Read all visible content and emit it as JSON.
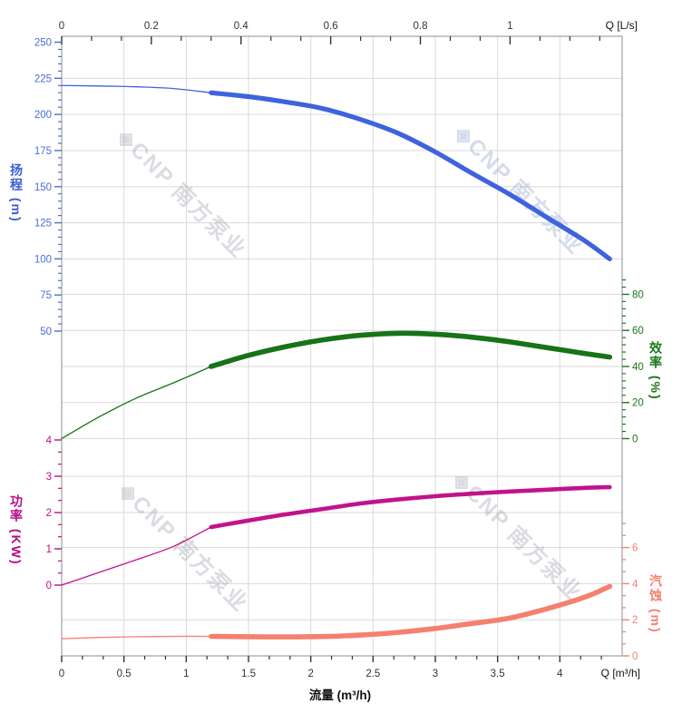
{
  "axes": {
    "head": {
      "title": "扬程 (m)"
    },
    "power": {
      "title": "功率 (KW)"
    },
    "eff": {
      "title": "效率 (%)"
    },
    "npsh": {
      "title": "汽蚀 (m)"
    },
    "bottom": {
      "title": "流量 (m³/h)",
      "unit": "Q [m³/h]"
    },
    "top": {
      "unit": "Q [L/s]"
    }
  },
  "watermark": {
    "text": "◈CNP 南方泵业"
  },
  "colors": {
    "head_curve": "#3e63dc",
    "head_labels": "#4a6fd8",
    "eff_curve": "#177317",
    "eff_labels": "#1a7a1a",
    "power_curve": "#c1138a",
    "power_labels": "#bf0d8c",
    "npsh_curve": "#f5806e",
    "npsh_labels": "#f5806e",
    "grid": "#dadada",
    "border": "#8c8c8c",
    "xtick_text": "#333333"
  },
  "chart_data": {
    "type": "line",
    "title": "",
    "x": {
      "name": "流量",
      "axis_label": "流量 (m³/h)",
      "unit_bottom": "Q [m³/h]",
      "unit_top": "Q [L/s]",
      "range_m3h": [
        0,
        4.5
      ],
      "major_ticks_m3h": [
        0,
        0.5,
        1,
        1.5,
        2,
        2.5,
        3,
        3.5,
        4
      ],
      "minor_step_m3h": 0.16667,
      "range_ls": [
        0,
        1.25
      ],
      "major_ticks_ls": [
        0,
        0.2,
        0.4,
        0.6,
        0.8,
        1
      ],
      "minor_step_ls": 0.06667
    },
    "thin_to_thick_q": 1.2,
    "curve_end_q": 4.4,
    "grid": true,
    "legend": "none",
    "series": [
      {
        "id": "head",
        "name": "扬程",
        "unit": "m",
        "axis_side": "left",
        "range": [
          50,
          250
        ],
        "major_ticks": [
          250,
          225,
          200,
          175,
          150,
          125,
          100,
          75,
          50
        ],
        "minor_step": 5,
        "minor_min": 50,
        "minor_max": 250,
        "points": [
          [
            0,
            220
          ],
          [
            0.3,
            219.7
          ],
          [
            0.6,
            219.1
          ],
          [
            0.9,
            217.9
          ],
          [
            1.2,
            215
          ],
          [
            1.5,
            212.3
          ],
          [
            1.8,
            208.6
          ],
          [
            2.1,
            204
          ],
          [
            2.4,
            196.5
          ],
          [
            2.7,
            187
          ],
          [
            3,
            174
          ],
          [
            3.3,
            159
          ],
          [
            3.6,
            144.5
          ],
          [
            3.9,
            128.5
          ],
          [
            4.2,
            112.5
          ],
          [
            4.4,
            100
          ]
        ]
      },
      {
        "id": "eff",
        "name": "效率",
        "unit": "%",
        "axis_side": "right",
        "range": [
          0,
          80
        ],
        "major_ticks": [
          80,
          60,
          40,
          20,
          0
        ],
        "minor_step": 4,
        "minor_min": 0,
        "minor_max": 88,
        "points": [
          [
            0,
            0
          ],
          [
            0.3,
            12
          ],
          [
            0.6,
            22.5
          ],
          [
            0.9,
            31
          ],
          [
            1.2,
            40
          ],
          [
            1.5,
            46.2
          ],
          [
            1.8,
            51
          ],
          [
            2.1,
            54.8
          ],
          [
            2.4,
            57.3
          ],
          [
            2.7,
            58.4
          ],
          [
            3,
            57.9
          ],
          [
            3.3,
            56.2
          ],
          [
            3.6,
            53.6
          ],
          [
            3.9,
            50.4
          ],
          [
            4.2,
            47.2
          ],
          [
            4.4,
            45.2
          ]
        ]
      },
      {
        "id": "power",
        "name": "功率",
        "unit": "KW",
        "axis_side": "left",
        "range": [
          0,
          4
        ],
        "major_ticks": [
          4,
          3,
          2,
          1,
          0
        ],
        "minor_step": 0.33333,
        "minor_min": 0,
        "minor_max": 4,
        "points": [
          [
            0,
            0
          ],
          [
            0.3,
            0.35
          ],
          [
            0.6,
            0.7
          ],
          [
            0.9,
            1.07
          ],
          [
            1.2,
            1.6
          ],
          [
            1.5,
            1.78
          ],
          [
            1.8,
            1.95
          ],
          [
            2.1,
            2.1
          ],
          [
            2.4,
            2.25
          ],
          [
            2.7,
            2.36
          ],
          [
            3,
            2.45
          ],
          [
            3.3,
            2.52
          ],
          [
            3.6,
            2.58
          ],
          [
            3.9,
            2.63
          ],
          [
            4.2,
            2.68
          ],
          [
            4.4,
            2.7
          ]
        ]
      },
      {
        "id": "npsh",
        "name": "汽蚀",
        "unit": "m",
        "axis_side": "right",
        "range": [
          0,
          6
        ],
        "major_ticks": [
          6,
          4,
          2,
          0
        ],
        "minor_step": 0.66667,
        "minor_min": 0,
        "minor_max": 7.34,
        "points": [
          [
            0,
            0.95
          ],
          [
            0.3,
            1.02
          ],
          [
            0.6,
            1.06
          ],
          [
            0.9,
            1.08
          ],
          [
            1.2,
            1.08
          ],
          [
            1.5,
            1.06
          ],
          [
            1.8,
            1.05
          ],
          [
            2.1,
            1.07
          ],
          [
            2.4,
            1.15
          ],
          [
            2.7,
            1.3
          ],
          [
            3,
            1.52
          ],
          [
            3.3,
            1.8
          ],
          [
            3.6,
            2.1
          ],
          [
            3.9,
            2.62
          ],
          [
            4.2,
            3.25
          ],
          [
            4.4,
            3.85
          ]
        ]
      }
    ]
  }
}
